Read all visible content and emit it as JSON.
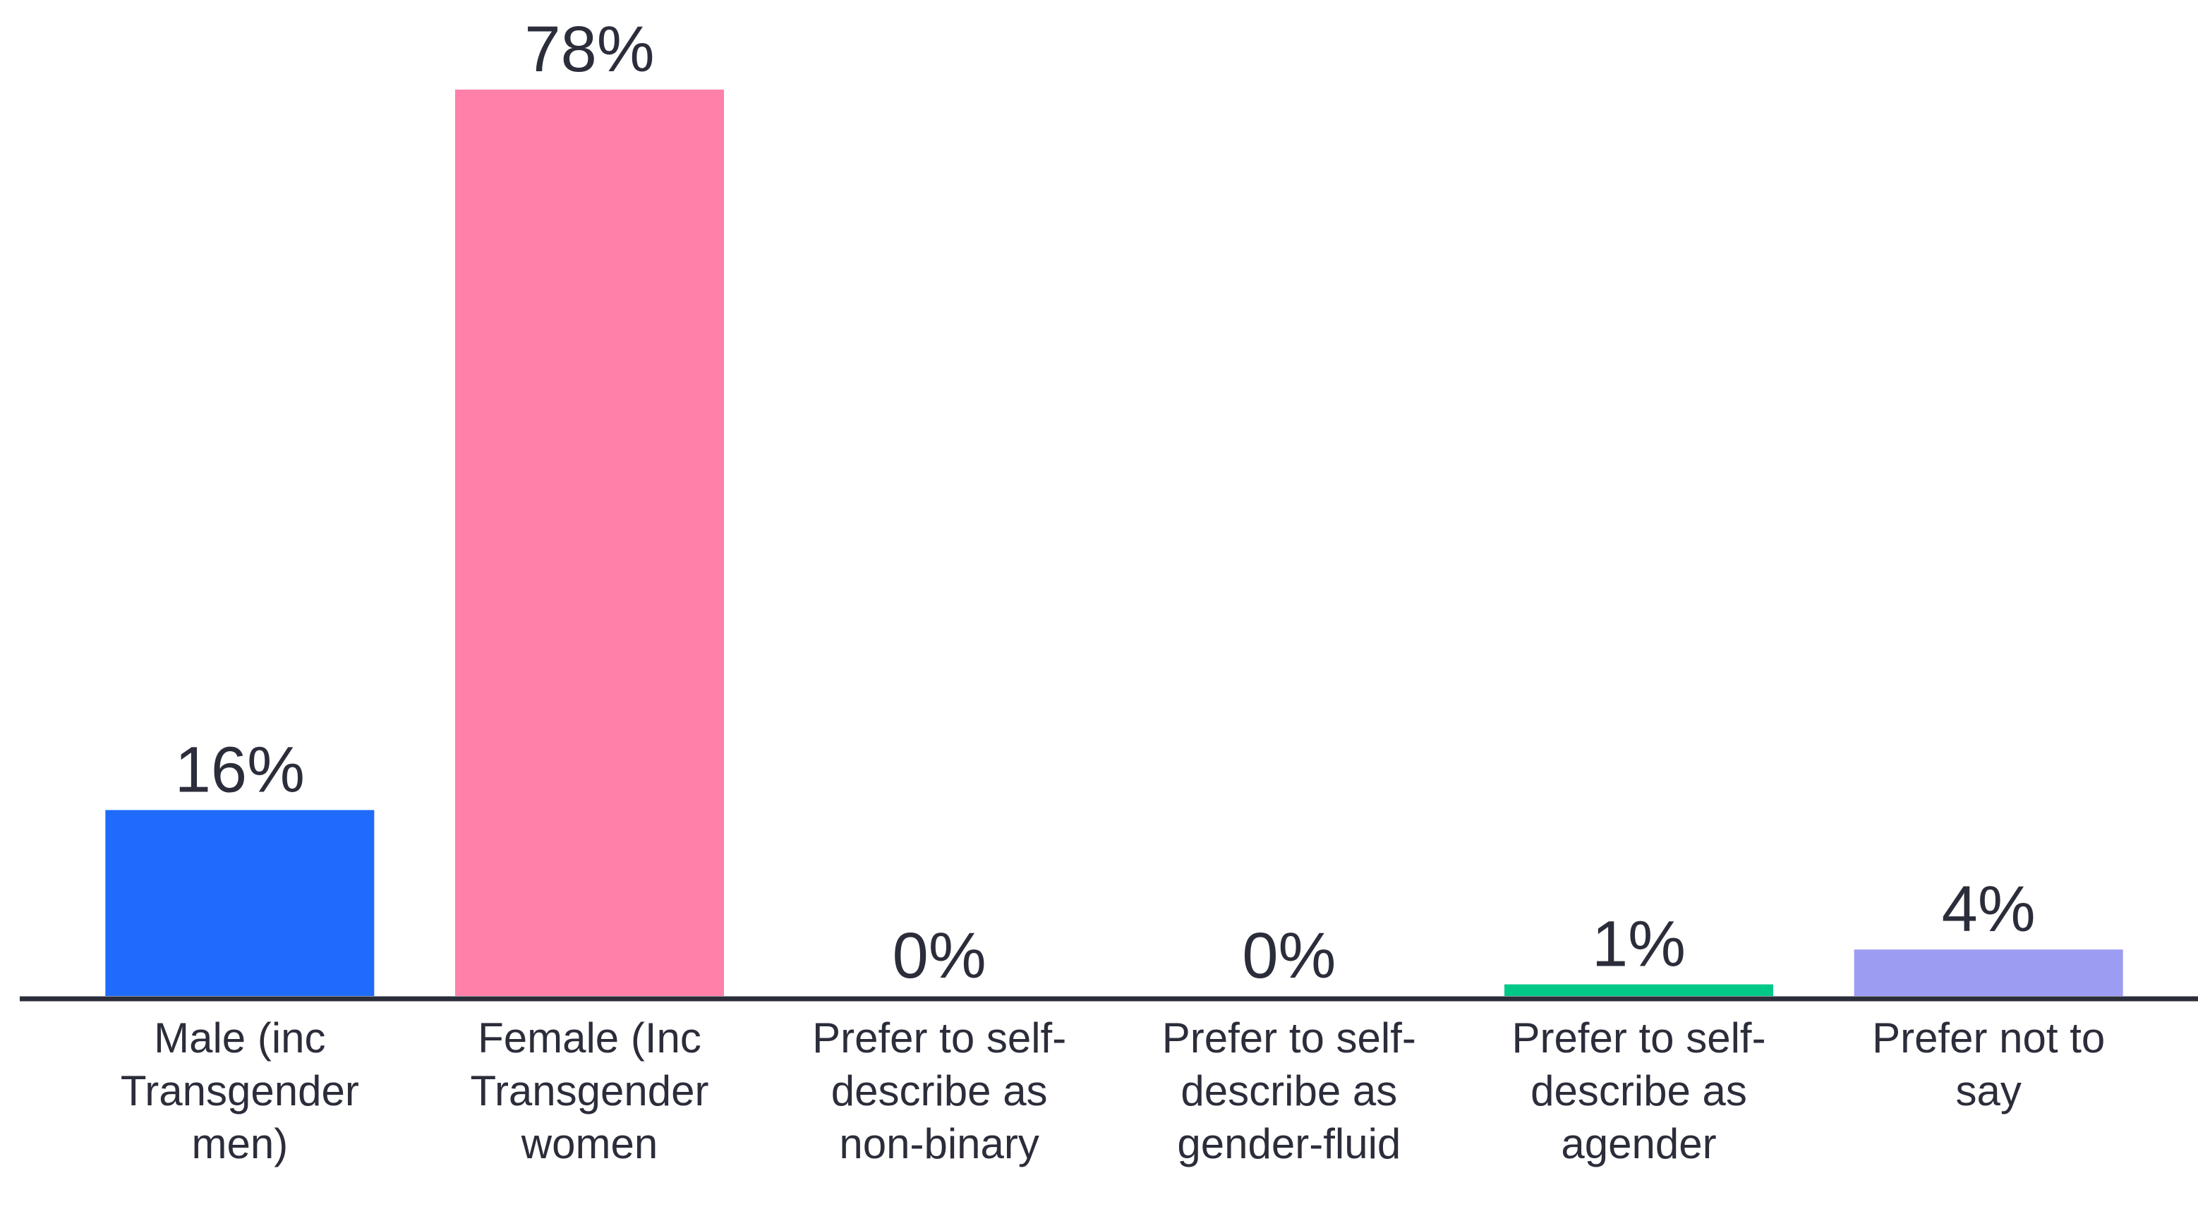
{
  "chart_data": {
    "type": "bar",
    "categories": [
      "Male (inc Transgender men)",
      "Female (Inc Transgender women",
      "Prefer to self-describe as non-binary",
      "Prefer to self-describe as gender-fluid",
      "Prefer to self-describe as agender",
      "Prefer not to say"
    ],
    "values": [
      16,
      78,
      0,
      0,
      1,
      4
    ],
    "value_labels": [
      "16%",
      "78%",
      "0%",
      "0%",
      "1%",
      "4%"
    ],
    "colors": [
      "#1f6bfb",
      "#ff80a8",
      null,
      null,
      "#00c987",
      "#9d9cf3"
    ],
    "ylim": [
      0,
      78
    ]
  }
}
